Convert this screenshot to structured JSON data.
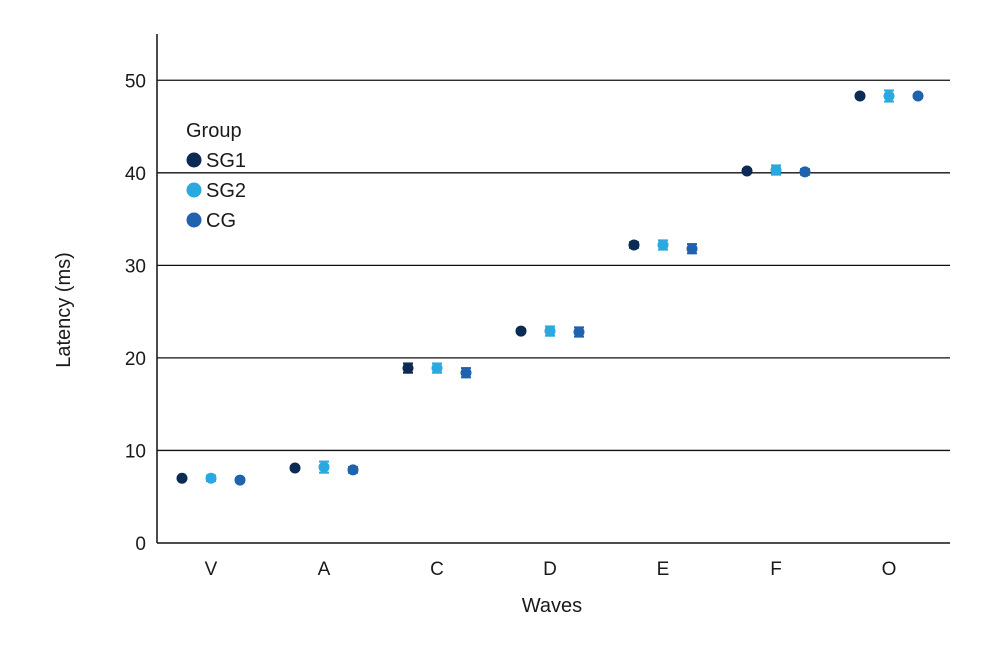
{
  "chart_data": {
    "type": "scatter",
    "xlabel": "Waves",
    "ylabel": "Latency (ms)",
    "categories": [
      "V",
      "A",
      "C",
      "D",
      "E",
      "F",
      "O"
    ],
    "ylim": [
      0,
      55
    ],
    "yticks": [
      0,
      10,
      20,
      30,
      40,
      50
    ],
    "grid": "horizontal",
    "legend": {
      "title": "Group",
      "placement": "top-left"
    },
    "series": [
      {
        "name": "SG1",
        "color": "#0b2a54",
        "values": [
          7.0,
          8.1,
          18.9,
          22.9,
          32.2,
          40.2,
          48.3
        ],
        "errors": [
          0.1,
          0.2,
          0.5,
          0.2,
          0.3,
          0.2,
          0.2
        ]
      },
      {
        "name": "SG2",
        "color": "#2aa8e0",
        "values": [
          7.0,
          8.2,
          18.9,
          22.9,
          32.2,
          40.3,
          48.3
        ],
        "errors": [
          0.3,
          0.6,
          0.5,
          0.5,
          0.5,
          0.5,
          0.6
        ]
      },
      {
        "name": "CG",
        "color": "#1f62ad",
        "values": [
          6.8,
          7.9,
          18.4,
          22.8,
          31.8,
          40.1,
          48.3
        ],
        "errors": [
          0.2,
          0.3,
          0.5,
          0.5,
          0.5,
          0.3,
          0.2
        ]
      }
    ]
  }
}
